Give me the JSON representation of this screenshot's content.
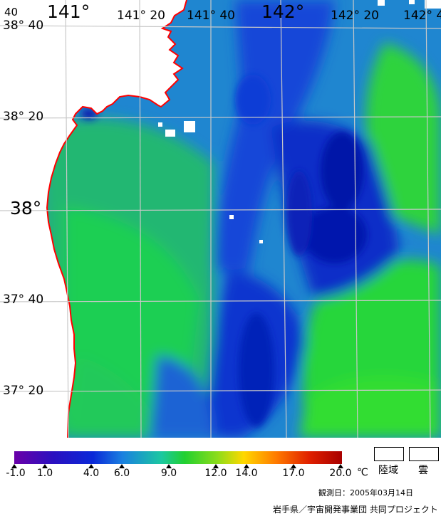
{
  "map": {
    "lon_labels": [
      "141°",
      "141° 20",
      "141° 40",
      "142°",
      "142° 20",
      "142° 4"
    ],
    "lat_labels": [
      "38° 40",
      "38° 20",
      "38°",
      "37° 40",
      "37° 20"
    ],
    "corner_label": "40"
  },
  "legend": {
    "ticks": [
      "-1.0",
      "1.0",
      "4.0",
      "6.0",
      "9.0",
      "12.0",
      "14.0",
      "17.0",
      "20.0"
    ],
    "unit": "℃",
    "land_label": "陸域",
    "cloud_label": "雲"
  },
  "observation_date": "観測日：2005年03月14日",
  "credit": "岩手県／宇宙開発事業団 共同プロジェクト",
  "colors": {
    "coastline": "#ff0000",
    "grid": "#c8c8c8",
    "land": "#ffffff",
    "sst_green": "#27d13a",
    "sst_blue": "#0f3fe0",
    "sst_deep": "#0010b0"
  }
}
